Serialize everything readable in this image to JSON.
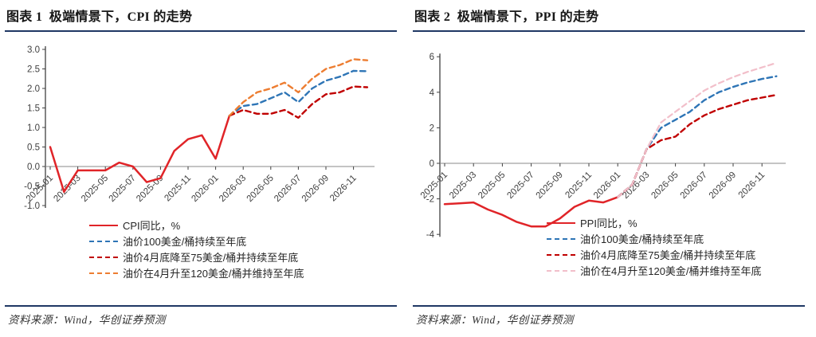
{
  "panels": [
    {
      "title": "图表 1  极端情景下，CPI 的走势",
      "source": "资料来源：Wind，华创证券预测",
      "rule_color": "#1f3864"
    },
    {
      "title": "图表 2  极端情景下，PPI 的走势",
      "source": "资料来源：Wind，华创证券预测",
      "rule_color": "#1f3864"
    }
  ],
  "chart_data": [
    {
      "type": "line",
      "title": "极端情景下，CPI 的走势",
      "x": [
        "2025-01",
        "2025-02",
        "2025-03",
        "2025-04",
        "2025-05",
        "2025-06",
        "2025-07",
        "2025-08",
        "2025-09",
        "2025-10",
        "2025-11",
        "2025-12",
        "2026-01",
        "2026-02",
        "2026-03",
        "2026-04",
        "2026-05",
        "2026-06",
        "2026-07",
        "2026-08",
        "2026-09",
        "2026-10",
        "2026-11",
        "2026-12"
      ],
      "x_tick_every": 2,
      "ylim": [
        -1.0,
        3.0
      ],
      "ystep": 0.5,
      "ydecimals": 1,
      "grid": false,
      "zero_axis": true,
      "legend_position": "inside-bottom-left",
      "series": [
        {
          "name": "CPI同比，%",
          "color": "#e02428",
          "dash": false,
          "width": 2.5,
          "values": [
            0.5,
            -0.65,
            -0.1,
            -0.1,
            -0.1,
            0.1,
            0,
            -0.4,
            -0.3,
            0.4,
            0.7,
            0.8,
            0.2,
            1.3,
            null,
            null,
            null,
            null,
            null,
            null,
            null,
            null,
            null,
            null
          ]
        },
        {
          "name": "油价100美金/桶持续至年底",
          "color": "#2e75b6",
          "dash": true,
          "width": 2.4,
          "values": [
            null,
            null,
            null,
            null,
            null,
            null,
            null,
            null,
            null,
            null,
            null,
            null,
            null,
            1.3,
            1.55,
            1.6,
            1.75,
            1.9,
            1.65,
            2.0,
            2.2,
            2.3,
            2.45,
            2.44
          ]
        },
        {
          "name": "油价4月底降至75美金/桶并持续至年底",
          "color": "#c00000",
          "dash": true,
          "width": 2.4,
          "values": [
            null,
            null,
            null,
            null,
            null,
            null,
            null,
            null,
            null,
            null,
            null,
            null,
            null,
            1.3,
            1.45,
            1.35,
            1.35,
            1.45,
            1.25,
            1.6,
            1.85,
            1.9,
            2.05,
            2.03
          ]
        },
        {
          "name": "油价在4月升至120美金/桶并维持至年底",
          "color": "#ed7d31",
          "dash": true,
          "width": 2.4,
          "values": [
            null,
            null,
            null,
            null,
            null,
            null,
            null,
            null,
            null,
            null,
            null,
            null,
            null,
            1.3,
            1.65,
            1.9,
            2.0,
            2.15,
            1.9,
            2.25,
            2.5,
            2.6,
            2.75,
            2.72
          ]
        }
      ]
    },
    {
      "type": "line",
      "title": "极端情景下，PPI 的走势",
      "x": [
        "2025-01",
        "2025-02",
        "2025-03",
        "2025-04",
        "2025-05",
        "2025-06",
        "2025-07",
        "2025-08",
        "2025-09",
        "2025-10",
        "2025-11",
        "2025-12",
        "2026-01",
        "2026-02",
        "2026-03",
        "2026-04",
        "2026-05",
        "2026-06",
        "2026-07",
        "2026-08",
        "2026-09",
        "2026-10",
        "2026-11",
        "2026-12"
      ],
      "x_tick_every": 2,
      "ylim": [
        -4,
        6
      ],
      "ystep": 2,
      "ydecimals": 0,
      "grid": false,
      "zero_axis": true,
      "legend_position": "inside-bottom-right",
      "series": [
        {
          "name": "PPI同比，%",
          "color": "#e02428",
          "dash": false,
          "width": 2.5,
          "values": [
            -2.3,
            -2.25,
            -2.2,
            -2.6,
            -2.9,
            -3.3,
            -3.55,
            -3.55,
            -3.1,
            -2.45,
            -2.1,
            -2.2,
            -1.9,
            null,
            null,
            null,
            null,
            null,
            null,
            null,
            null,
            null,
            null,
            null
          ]
        },
        {
          "name": "油价100美金/桶持续至年底",
          "color": "#2e75b6",
          "dash": true,
          "width": 2.4,
          "values": [
            null,
            null,
            null,
            null,
            null,
            null,
            null,
            null,
            null,
            null,
            null,
            null,
            -1.9,
            -1.2,
            0.8,
            2.0,
            2.45,
            2.9,
            3.55,
            4.0,
            4.3,
            4.55,
            4.75,
            4.9
          ]
        },
        {
          "name": "油价4月底降至75美金/桶并持续至年底",
          "color": "#c00000",
          "dash": true,
          "width": 2.4,
          "values": [
            null,
            null,
            null,
            null,
            null,
            null,
            null,
            null,
            null,
            null,
            null,
            null,
            -1.9,
            -1.2,
            0.8,
            1.3,
            1.5,
            2.2,
            2.7,
            3.05,
            3.3,
            3.55,
            3.7,
            3.85
          ]
        },
        {
          "name": "油价在4月升至120美金/桶并维持至年底",
          "color": "#f2bfca",
          "dash": true,
          "width": 2.2,
          "values": [
            null,
            null,
            null,
            null,
            null,
            null,
            null,
            null,
            null,
            null,
            null,
            null,
            -1.9,
            -1.2,
            0.8,
            2.3,
            2.9,
            3.5,
            4.1,
            4.5,
            4.85,
            5.15,
            5.4,
            5.65
          ]
        }
      ]
    }
  ]
}
